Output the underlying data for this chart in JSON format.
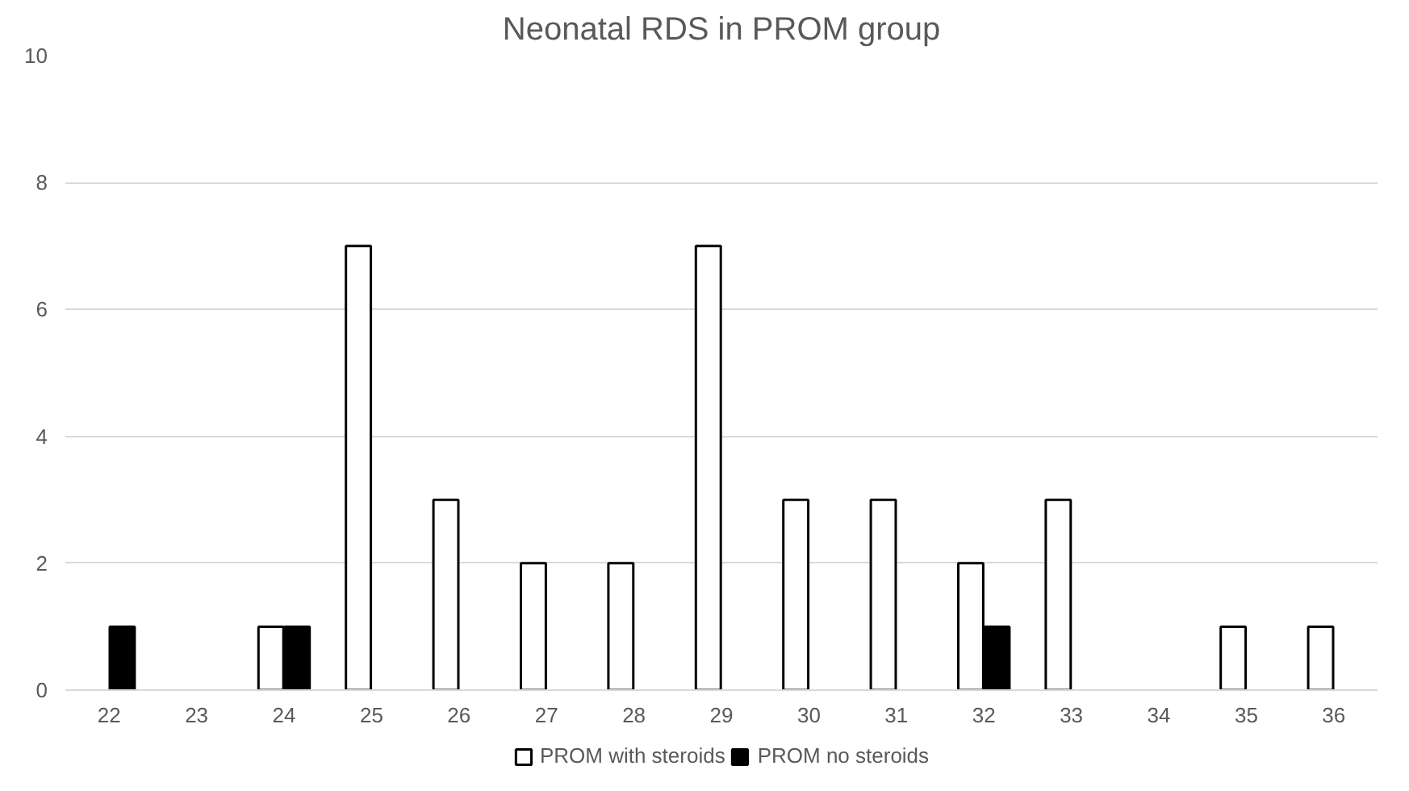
{
  "chart_data": {
    "type": "bar",
    "title": "Neonatal RDS in PROM group",
    "categories": [
      "22",
      "23",
      "24",
      "25",
      "26",
      "27",
      "28",
      "29",
      "30",
      "31",
      "32",
      "33",
      "34",
      "35",
      "36"
    ],
    "series": [
      {
        "name": "PROM with steroids",
        "color": "#ffffff",
        "values": [
          null,
          null,
          1,
          7,
          3,
          2,
          2,
          7,
          3,
          3,
          2,
          3,
          null,
          1,
          1
        ]
      },
      {
        "name": "PROM no steroids",
        "color": "#000000",
        "values": [
          1,
          null,
          1,
          null,
          null,
          null,
          null,
          null,
          null,
          null,
          1,
          null,
          null,
          null,
          null
        ]
      }
    ],
    "ylim": [
      0,
      10
    ],
    "yticks": [
      0,
      2,
      4,
      6,
      8,
      10
    ],
    "grid": "y",
    "legend": "bottom"
  }
}
